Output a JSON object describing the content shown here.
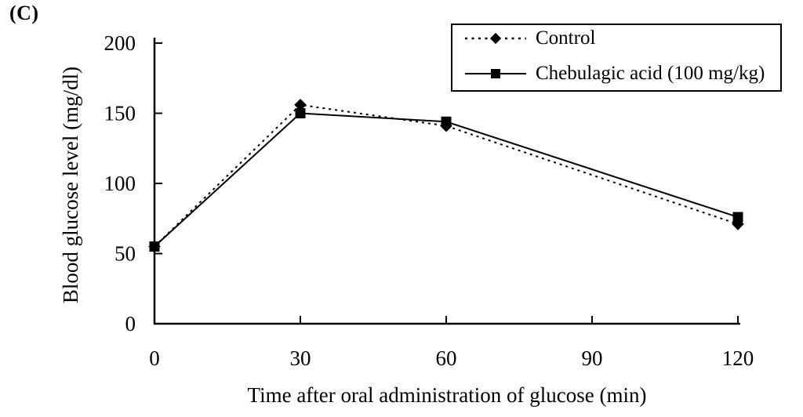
{
  "figure": {
    "panel_label": "(C)"
  },
  "chart_data": {
    "type": "line",
    "title": "",
    "x": [
      0,
      30,
      60,
      120
    ],
    "xticks": [
      0,
      30,
      60,
      90,
      120
    ],
    "yticks": [
      0,
      50,
      100,
      150,
      200
    ],
    "xlim": [
      0,
      120
    ],
    "ylim": [
      0,
      200
    ],
    "xlabel": "Time after oral administration of glucose (min)",
    "ylabel": "Blood glucose level (mg/dl)",
    "grid": false,
    "legend_position": "top-right",
    "axis_color": "#000000",
    "series": [
      {
        "name": "Control",
        "marker": "diamond",
        "line_style": "dotted",
        "color": "#000000",
        "values": [
          55,
          156,
          141,
          71
        ]
      },
      {
        "name": "Chebulagic acid (100 mg/kg)",
        "marker": "square",
        "line_style": "solid",
        "color": "#000000",
        "values": [
          55,
          150,
          144,
          76
        ]
      }
    ]
  }
}
